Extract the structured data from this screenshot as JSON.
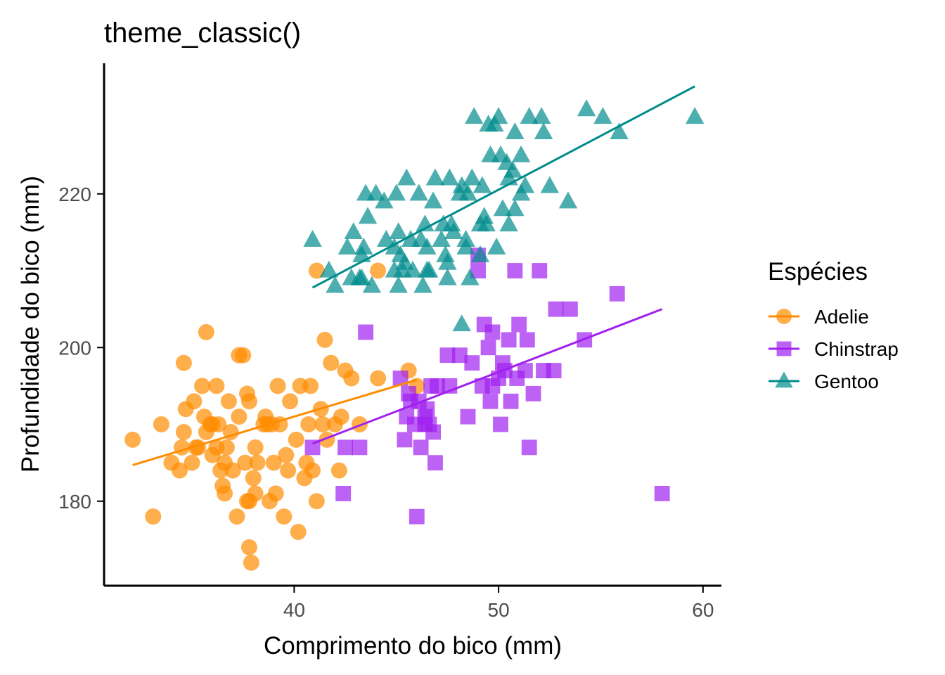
{
  "chart_data": {
    "type": "scatter",
    "title": "theme_classic()",
    "xlabel": "Comprimento do bico (mm)",
    "ylabel": "Profundidade do bico (mm)",
    "xlim": [
      30.7,
      60.9
    ],
    "ylim": [
      169,
      237
    ],
    "x_ticks": [
      40,
      50,
      60
    ],
    "y_ticks": [
      180,
      200,
      220
    ],
    "grid": false,
    "legend": {
      "title": "Espécies",
      "position": "right"
    },
    "series": [
      {
        "name": "Adelie",
        "color": "#FF8C00",
        "marker": "circle",
        "points": [
          [
            32.1,
            188
          ],
          [
            33.1,
            178
          ],
          [
            33.5,
            190
          ],
          [
            34.0,
            185
          ],
          [
            34.4,
            184
          ],
          [
            34.5,
            187
          ],
          [
            34.6,
            189
          ],
          [
            34.6,
            198
          ],
          [
            34.7,
            192
          ],
          [
            35.0,
            185
          ],
          [
            35.1,
            193
          ],
          [
            35.2,
            187
          ],
          [
            35.3,
            187
          ],
          [
            35.5,
            195
          ],
          [
            35.6,
            191
          ],
          [
            35.7,
            189
          ],
          [
            35.7,
            202
          ],
          [
            35.9,
            190
          ],
          [
            36.0,
            186
          ],
          [
            36.0,
            190
          ],
          [
            36.2,
            187
          ],
          [
            36.2,
            195
          ],
          [
            36.3,
            190
          ],
          [
            36.4,
            184
          ],
          [
            36.5,
            182
          ],
          [
            36.6,
            181
          ],
          [
            36.6,
            185
          ],
          [
            36.7,
            187
          ],
          [
            36.8,
            193
          ],
          [
            36.9,
            189
          ],
          [
            37.0,
            184
          ],
          [
            37.2,
            178
          ],
          [
            37.3,
            191
          ],
          [
            37.3,
            199
          ],
          [
            37.5,
            199
          ],
          [
            37.6,
            185
          ],
          [
            37.7,
            180
          ],
          [
            37.7,
            194
          ],
          [
            37.8,
            174
          ],
          [
            37.8,
            180
          ],
          [
            37.8,
            193
          ],
          [
            37.9,
            172
          ],
          [
            38.0,
            183
          ],
          [
            38.1,
            181
          ],
          [
            38.1,
            187
          ],
          [
            38.2,
            185
          ],
          [
            38.5,
            190
          ],
          [
            38.6,
            191
          ],
          [
            38.7,
            190
          ],
          [
            38.8,
            180
          ],
          [
            38.9,
            190
          ],
          [
            39.0,
            185
          ],
          [
            39.1,
            181
          ],
          [
            39.2,
            195
          ],
          [
            39.3,
            190
          ],
          [
            39.5,
            178
          ],
          [
            39.6,
            186
          ],
          [
            39.7,
            184
          ],
          [
            39.8,
            193
          ],
          [
            40.1,
            188
          ],
          [
            40.2,
            176
          ],
          [
            40.3,
            195
          ],
          [
            40.5,
            183
          ],
          [
            40.6,
            185
          ],
          [
            40.7,
            190
          ],
          [
            40.8,
            195
          ],
          [
            40.9,
            184
          ],
          [
            41.1,
            180
          ],
          [
            41.3,
            192
          ],
          [
            41.4,
            190
          ],
          [
            41.5,
            201
          ],
          [
            41.6,
            188
          ],
          [
            41.8,
            198
          ],
          [
            42.0,
            190
          ],
          [
            42.2,
            184
          ],
          [
            42.3,
            191
          ],
          [
            42.5,
            197
          ],
          [
            42.8,
            196
          ],
          [
            43.2,
            190
          ],
          [
            44.1,
            196
          ],
          [
            45.6,
            197
          ],
          [
            46.0,
            195
          ],
          [
            41.1,
            210
          ],
          [
            44.1,
            210
          ]
        ],
        "trend": [
          [
            32.1,
            184.7
          ],
          [
            46.0,
            195.8
          ]
        ]
      },
      {
        "name": "Chinstrap",
        "color": "#A020F0",
        "marker": "square",
        "points": [
          [
            40.9,
            187
          ],
          [
            42.4,
            181
          ],
          [
            42.5,
            187
          ],
          [
            43.2,
            187
          ],
          [
            43.5,
            202
          ],
          [
            45.2,
            196
          ],
          [
            45.4,
            188
          ],
          [
            45.5,
            191
          ],
          [
            45.6,
            194
          ],
          [
            45.7,
            193
          ],
          [
            46.0,
            178
          ],
          [
            46.1,
            193
          ],
          [
            46.2,
            187
          ],
          [
            46.4,
            190
          ],
          [
            46.5,
            192
          ],
          [
            46.6,
            190
          ],
          [
            46.7,
            195
          ],
          [
            46.8,
            189
          ],
          [
            46.9,
            185
          ],
          [
            47.0,
            195
          ],
          [
            47.5,
            199
          ],
          [
            47.6,
            195
          ],
          [
            48.1,
            199
          ],
          [
            48.5,
            191
          ],
          [
            49.0,
            210
          ],
          [
            49.2,
            195
          ],
          [
            49.3,
            203
          ],
          [
            49.5,
            200
          ],
          [
            49.6,
            193
          ],
          [
            49.7,
            195
          ],
          [
            50.0,
            196
          ],
          [
            50.2,
            198
          ],
          [
            50.3,
            197
          ],
          [
            50.5,
            201
          ],
          [
            50.6,
            193
          ],
          [
            50.8,
            210
          ],
          [
            50.9,
            196
          ],
          [
            51.0,
            203
          ],
          [
            51.3,
            197
          ],
          [
            51.4,
            201
          ],
          [
            51.5,
            187
          ],
          [
            51.7,
            194
          ],
          [
            52.0,
            210
          ],
          [
            52.2,
            197
          ],
          [
            52.7,
            197
          ],
          [
            52.8,
            205
          ],
          [
            53.5,
            205
          ],
          [
            54.2,
            201
          ],
          [
            55.8,
            207
          ],
          [
            58.0,
            181
          ],
          [
            48.7,
            198
          ],
          [
            49.7,
            202
          ],
          [
            50.1,
            190
          ],
          [
            45.9,
            190
          ],
          [
            46.4,
            191
          ],
          [
            49.0,
            212
          ]
        ],
        "trend": [
          [
            40.9,
            187.5
          ],
          [
            58.0,
            205.0
          ]
        ]
      },
      {
        "name": "Gentoo",
        "color": "#008B8B",
        "marker": "triangle",
        "points": [
          [
            40.9,
            214
          ],
          [
            41.7,
            210
          ],
          [
            42.0,
            208
          ],
          [
            42.6,
            213
          ],
          [
            42.8,
            209
          ],
          [
            42.9,
            215
          ],
          [
            43.2,
            209
          ],
          [
            43.3,
            209
          ],
          [
            43.4,
            213
          ],
          [
            43.5,
            220
          ],
          [
            43.6,
            217
          ],
          [
            43.8,
            208
          ],
          [
            44.0,
            220
          ],
          [
            44.4,
            219
          ],
          [
            44.5,
            214
          ],
          [
            44.9,
            213
          ],
          [
            45.0,
            220
          ],
          [
            45.1,
            215
          ],
          [
            45.2,
            212
          ],
          [
            45.3,
            210
          ],
          [
            45.4,
            211
          ],
          [
            45.5,
            222
          ],
          [
            45.7,
            214
          ],
          [
            45.8,
            210
          ],
          [
            46.1,
            220
          ],
          [
            46.2,
            214
          ],
          [
            46.3,
            208
          ],
          [
            46.4,
            216
          ],
          [
            46.5,
            210
          ],
          [
            46.6,
            210
          ],
          [
            46.8,
            219
          ],
          [
            46.9,
            222
          ],
          [
            47.2,
            214
          ],
          [
            47.3,
            216
          ],
          [
            47.4,
            212
          ],
          [
            47.5,
            209
          ],
          [
            47.6,
            222
          ],
          [
            47.7,
            216
          ],
          [
            47.8,
            215
          ],
          [
            48.1,
            220
          ],
          [
            48.2,
            221
          ],
          [
            48.4,
            214
          ],
          [
            48.5,
            220
          ],
          [
            48.6,
            209
          ],
          [
            48.7,
            222
          ],
          [
            48.8,
            230
          ],
          [
            49.1,
            212
          ],
          [
            49.2,
            221
          ],
          [
            49.3,
            217
          ],
          [
            49.4,
            216
          ],
          [
            49.5,
            229
          ],
          [
            49.6,
            225
          ],
          [
            49.8,
            229
          ],
          [
            49.9,
            213
          ],
          [
            50.0,
            230
          ],
          [
            50.1,
            225
          ],
          [
            50.2,
            218
          ],
          [
            50.4,
            224
          ],
          [
            50.5,
            222
          ],
          [
            50.7,
            223
          ],
          [
            50.8,
            228
          ],
          [
            51.1,
            220
          ],
          [
            51.3,
            221
          ],
          [
            51.5,
            230
          ],
          [
            52.1,
            230
          ],
          [
            52.2,
            228
          ],
          [
            52.5,
            221
          ],
          [
            53.4,
            219
          ],
          [
            54.3,
            231
          ],
          [
            55.1,
            230
          ],
          [
            55.9,
            228
          ],
          [
            59.6,
            230
          ],
          [
            44.9,
            210
          ],
          [
            45.1,
            208
          ],
          [
            46.5,
            213
          ],
          [
            47.5,
            211
          ],
          [
            48.4,
            213
          ],
          [
            49.1,
            216
          ],
          [
            50.5,
            216
          ],
          [
            50.8,
            218
          ],
          [
            51.1,
            225
          ],
          [
            43.3,
            212
          ],
          [
            48.2,
            203
          ]
        ],
        "trend": [
          [
            40.9,
            207.8
          ],
          [
            59.6,
            234.0
          ]
        ]
      }
    ]
  }
}
